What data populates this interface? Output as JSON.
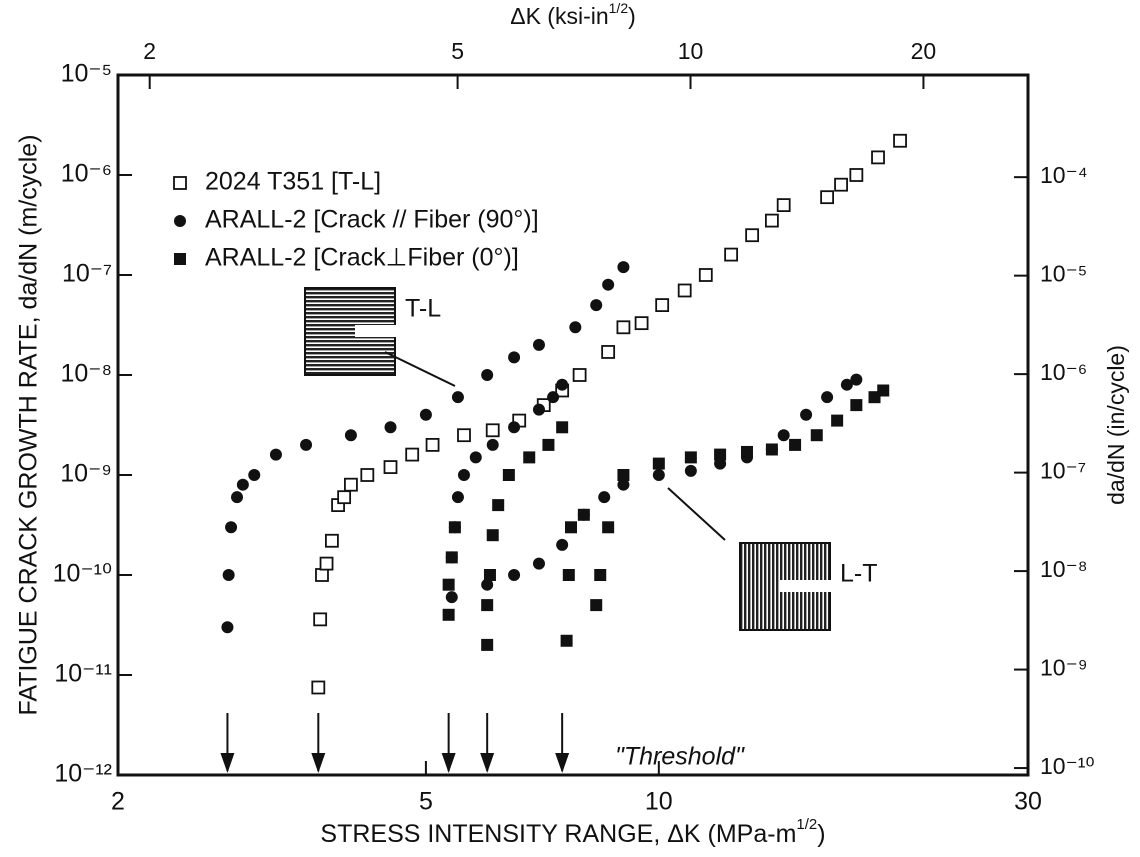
{
  "chart_data": {
    "type": "scatter",
    "x_label": [
      "STRESS INTENSITY RANGE, ΔK (MPa-m",
      "1/2",
      ")"
    ],
    "x2_label": [
      "ΔK (ksi-in",
      "1/2",
      ")"
    ],
    "y_label": "FATIGUE CRACK GROWTH RATE, da/dN (m/cycle)",
    "y2_label": "da/dN (in/cycle)",
    "log_x": true,
    "log_y": true,
    "xlim": [
      2,
      30
    ],
    "xticks": [
      2,
      5,
      10,
      30
    ],
    "x2lim": [
      1.82,
      27.3
    ],
    "x2ticks": [
      2,
      5,
      10,
      20
    ],
    "ylim": [
      1e-12,
      1e-05
    ],
    "yticks": [
      {
        "value": 1e-12,
        "label": "10⁻¹²"
      },
      {
        "value": 1e-11,
        "label": "10⁻¹¹"
      },
      {
        "value": 1e-10,
        "label": "10⁻¹⁰"
      },
      {
        "value": 1e-09,
        "label": "10⁻⁹"
      },
      {
        "value": 1e-08,
        "label": "10⁻⁸"
      },
      {
        "value": 1e-07,
        "label": "10⁻⁷"
      },
      {
        "value": 1e-06,
        "label": "10⁻⁶"
      },
      {
        "value": 1e-05,
        "label": "10⁻⁵"
      }
    ],
    "y2lim": [
      8.5e-11,
      0.00109
    ],
    "y2ticks": [
      {
        "value": 1e-10,
        "label": "10⁻¹⁰"
      },
      {
        "value": 1e-09,
        "label": "10⁻⁹"
      },
      {
        "value": 1e-08,
        "label": "10⁻⁸"
      },
      {
        "value": 1e-07,
        "label": "10⁻⁷"
      },
      {
        "value": 1e-06,
        "label": "10⁻⁶"
      },
      {
        "value": 1e-05,
        "label": "10⁻⁵"
      },
      {
        "value": 0.0001,
        "label": "10⁻⁴"
      }
    ],
    "legend": "upper left",
    "series": [
      {
        "name": "2024 T351 [T-L]",
        "marker": "open-square",
        "color": "#111111",
        "x": [
          3.63,
          3.65,
          3.67,
          3.72,
          3.78,
          3.85,
          3.92,
          4.0,
          4.2,
          4.5,
          4.8,
          5.1,
          5.6,
          6.1,
          6.6,
          7.1,
          7.5,
          7.9,
          8.6,
          9.0,
          9.5,
          10.1,
          10.8,
          11.5,
          12.4,
          13.2,
          14.0,
          14.5,
          16.5,
          17.2,
          18.0,
          19.2,
          20.5
        ],
        "values": [
          7.5e-12,
          3.6e-11,
          1e-10,
          1.3e-10,
          2.2e-10,
          5e-10,
          6e-10,
          8e-10,
          1e-09,
          1.2e-09,
          1.6e-09,
          2e-09,
          2.5e-09,
          2.8e-09,
          3.5e-09,
          5e-09,
          7e-09,
          1e-08,
          1.7e-08,
          3e-08,
          3.3e-08,
          5e-08,
          7e-08,
          1e-07,
          1.6e-07,
          2.5e-07,
          3.5e-07,
          5e-07,
          6e-07,
          8e-07,
          1e-06,
          1.5e-06,
          2.2e-06
        ]
      },
      {
        "name": "ARALL-2 [Crack // Fiber (90°)]",
        "marker": "circle",
        "color": "#111111",
        "x": [
          2.77,
          2.78,
          2.8,
          2.85,
          2.9,
          3.0,
          3.2,
          3.5,
          4.0,
          4.5,
          5.0,
          5.5,
          6.0,
          6.5,
          7.0,
          7.8,
          8.3,
          8.6,
          9.0,
          5.4,
          5.4,
          5.45,
          5.5,
          5.6,
          5.8,
          6.1,
          6.5,
          7.0,
          7.3,
          7.5,
          6.0,
          6.5,
          7.0,
          7.5,
          8.0,
          8.5,
          9.0,
          10,
          11,
          12,
          13,
          14,
          14.5,
          15.5,
          16.5,
          17.5,
          18
        ],
        "values": [
          3e-11,
          1e-10,
          3e-10,
          6e-10,
          8e-10,
          1e-09,
          1.6e-09,
          2e-09,
          2.5e-09,
          3e-09,
          4e-09,
          6e-09,
          1e-08,
          1.5e-08,
          2e-08,
          3e-08,
          5e-08,
          8e-08,
          1.2e-07,
          6e-11,
          1.5e-10,
          3e-10,
          6e-10,
          1e-09,
          1.5e-09,
          2e-09,
          3e-09,
          4.5e-09,
          6e-09,
          8e-09,
          8e-11,
          1e-10,
          1.3e-10,
          2e-10,
          4e-10,
          6e-10,
          8e-10,
          1e-09,
          1.1e-09,
          1.3e-09,
          1.5e-09,
          1.8e-09,
          2.5e-09,
          4e-09,
          6e-09,
          8e-09,
          9e-09
        ]
      },
      {
        "name": "ARALL-2 [Crack⊥Fiber (0°)]",
        "marker": "square",
        "color": "#111111",
        "x": [
          5.35,
          5.35,
          5.4,
          5.45,
          6.0,
          6.0,
          6.05,
          6.1,
          6.2,
          6.4,
          6.8,
          7.2,
          7.5,
          7.6,
          7.65,
          7.7,
          8.0,
          8.3,
          8.4,
          8.6,
          9.0,
          10,
          11,
          12,
          13,
          14,
          15,
          16,
          17,
          18,
          19,
          19.5
        ],
        "values": [
          4e-11,
          8e-11,
          1.5e-10,
          3e-10,
          2e-11,
          5e-11,
          1e-10,
          2.5e-10,
          5e-10,
          1e-09,
          1.5e-09,
          2e-09,
          3e-09,
          2.2e-11,
          1e-10,
          3e-10,
          4e-10,
          5e-11,
          1e-10,
          3e-10,
          1e-09,
          1.3e-09,
          1.5e-09,
          1.6e-09,
          1.7e-09,
          1.8e-09,
          2e-09,
          2.5e-09,
          3.5e-09,
          5e-09,
          6e-09,
          7e-09
        ]
      }
    ],
    "thresholds": [
      2.77,
      3.63,
      5.35,
      6.0,
      7.5
    ],
    "annotations": [
      "T-L",
      "L-T",
      "\"Threshold\""
    ]
  }
}
